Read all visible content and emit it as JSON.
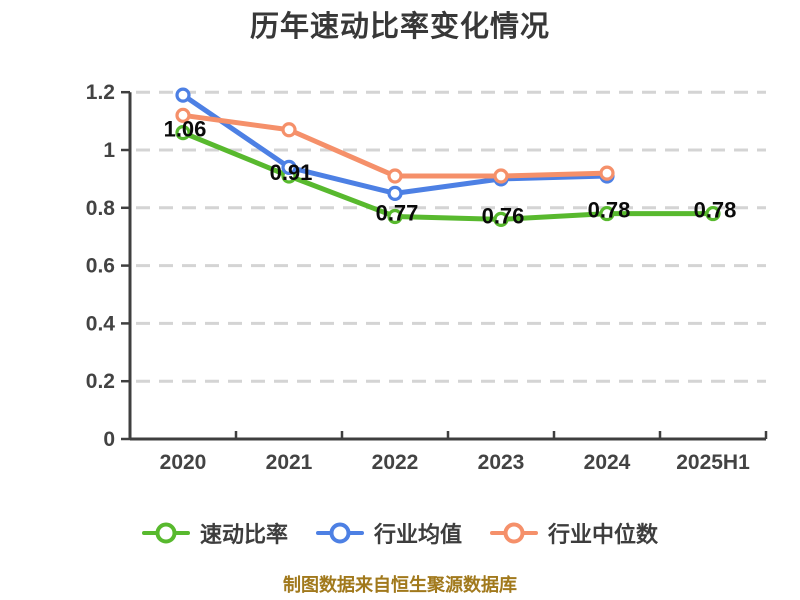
{
  "chart_data": {
    "type": "line",
    "title": "历年速动比率变化情况",
    "categories": [
      "2020",
      "2021",
      "2022",
      "2023",
      "2024",
      "2025H1"
    ],
    "series": [
      {
        "key": "quick-ratio",
        "name": "速动比率",
        "color": "#58b92e",
        "values": [
          1.06,
          0.91,
          0.77,
          0.76,
          0.78,
          0.78
        ],
        "show_labels": true,
        "labels": [
          "1.06",
          "0.91",
          "0.77",
          "0.76",
          "0.78",
          "0.78"
        ]
      },
      {
        "key": "industry-mean",
        "name": "行业均值",
        "color": "#4d80e4",
        "values": [
          1.19,
          0.94,
          0.85,
          0.9,
          0.91,
          null
        ],
        "show_labels": false
      },
      {
        "key": "industry-median",
        "name": "行业中位数",
        "color": "#f5906a",
        "values": [
          1.12,
          1.07,
          0.91,
          0.91,
          0.92,
          null
        ],
        "show_labels": false
      }
    ],
    "ylim": [
      0,
      1.2
    ],
    "yticks": [
      {
        "v": 0,
        "label": "0"
      },
      {
        "v": 0.2,
        "label": "0.2"
      },
      {
        "v": 0.4,
        "label": "0.4"
      },
      {
        "v": 0.6,
        "label": "0.6"
      },
      {
        "v": 0.8,
        "label": "0.8"
      },
      {
        "v": 1,
        "label": "1"
      },
      {
        "v": 1.2,
        "label": "1.2"
      }
    ],
    "grid": "dashed-horizontal",
    "legend_position": "bottom",
    "footer": "制图数据来自恒生聚源数据库"
  },
  "colors": {
    "axis": "#3f3f3f",
    "grid": "#d4d4d4",
    "tick_text": "#434343",
    "title_text": "#383838",
    "legend_text": "#3d3d3d",
    "value_label": "#0a0a0a",
    "footer_text": "#a1791c",
    "background": "#ffffff"
  }
}
